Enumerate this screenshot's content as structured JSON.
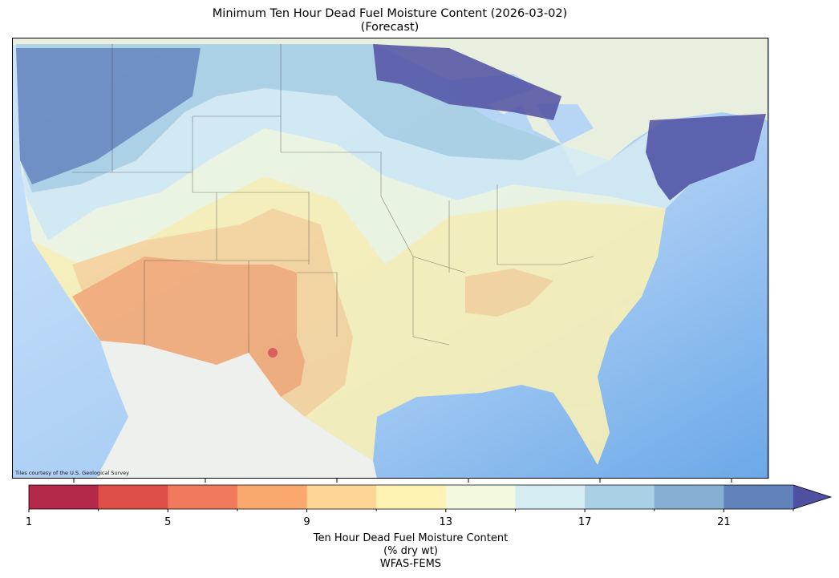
{
  "title": "Minimum Ten Hour Dead Fuel Moisture Content (2026-03-02)",
  "subtitle": "(Forecast)",
  "attribution": "Tiles courtesy of the U.S. Geological Survey",
  "colorbar": {
    "label_lines": [
      "Ten Hour Dead Fuel Moisture Content",
      "(% dry wt)",
      "WFAS-FEMS"
    ],
    "min": 1,
    "max": 23,
    "step": 2,
    "extend": "max",
    "ticks": [
      1,
      5,
      9,
      13,
      17,
      21
    ],
    "colors": [
      "#b4284a",
      "#dc4e47",
      "#f07a5b",
      "#faa86d",
      "#fed595",
      "#fff3b3",
      "#f3f9df",
      "#d5ecf3",
      "#a9d0e4",
      "#85b0d3",
      "#6282bc"
    ],
    "over_color": "#5050a2"
  }
}
